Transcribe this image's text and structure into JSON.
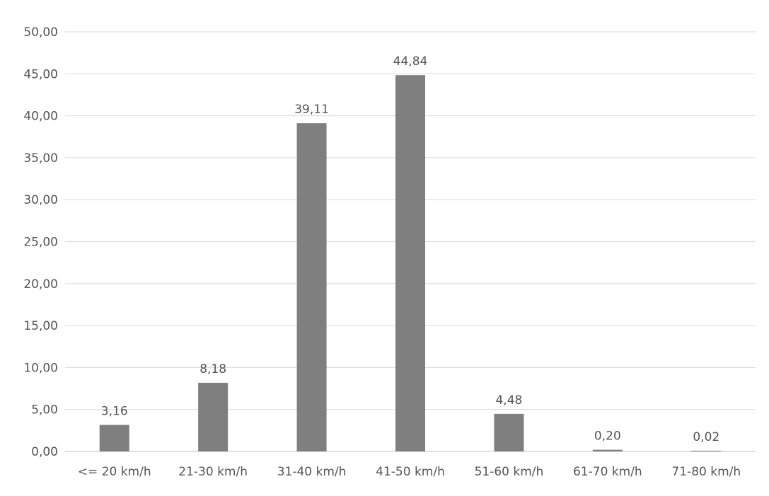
{
  "chart_data": {
    "type": "bar",
    "title": "",
    "xlabel": "",
    "ylabel": "",
    "categories": [
      "<= 20 km/h",
      "21-30 km/h",
      "31-40 km/h",
      "41-50 km/h",
      "51-60 km/h",
      "61-70 km/h",
      "71-80 km/h"
    ],
    "values": [
      3.16,
      8.18,
      39.11,
      44.84,
      4.48,
      0.2,
      0.02
    ],
    "value_labels": [
      "3,16",
      "8,18",
      "39,11",
      "44,84",
      "4,48",
      "0,20",
      "0,02"
    ],
    "ylim": [
      0,
      50
    ],
    "yticks": [
      0,
      5,
      10,
      15,
      20,
      25,
      30,
      35,
      40,
      45,
      50
    ],
    "ytick_labels": [
      "0,00",
      "5,00",
      "10,00",
      "15,00",
      "20,00",
      "25,00",
      "30,00",
      "35,00",
      "40,00",
      "45,00",
      "50,00"
    ],
    "grid": true,
    "legend": "none",
    "bar_color": "#7f7f7f",
    "grid_color": "#d9d9d9",
    "text_color": "#555555"
  }
}
